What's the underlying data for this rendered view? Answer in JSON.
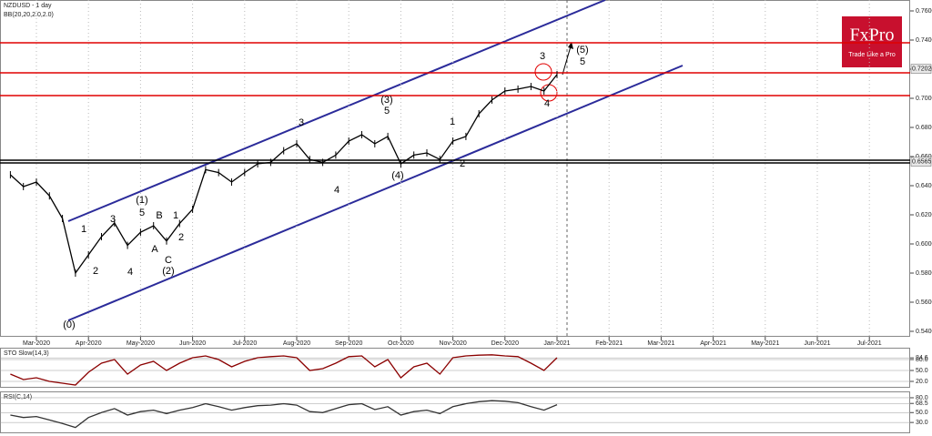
{
  "branding": {
    "name": "FxPro",
    "tagline": "Trade Like a Pro"
  },
  "chart_data": [
    {
      "type": "line",
      "title": "NZDUSD - 1 day",
      "subtitle": "BB(20,20,2.0,2.0)",
      "categories": [
        null,
        null,
        "Mar-2020",
        null,
        null,
        null,
        "Apr-2020",
        null,
        null,
        null,
        "May-2020",
        null,
        null,
        null,
        "Jun-2020",
        null,
        null,
        null,
        "Jul-2020",
        null,
        null,
        null,
        "Aug-2020",
        null,
        null,
        null,
        "Sep-2020",
        null,
        null,
        null,
        "Oct-2020",
        null,
        null,
        null,
        "Nov-2020",
        null,
        null,
        null,
        "Dec-2020",
        null,
        null,
        null,
        "Jan-2021",
        null,
        null,
        null,
        "Feb-2021",
        null,
        null,
        null,
        "Mar-2021",
        null,
        null,
        null,
        "Apr-2021",
        null,
        null,
        null,
        "May-2021",
        null,
        null,
        null,
        "Jun-2021",
        null,
        null,
        null,
        "Jul-2021",
        null
      ],
      "values": [
        0.6475,
        0.6394,
        0.6425,
        0.633,
        0.6175,
        0.58,
        0.5925,
        0.605,
        0.6144,
        0.599,
        0.608,
        0.6125,
        0.602,
        0.614,
        0.6238,
        0.651,
        0.649,
        0.6425,
        0.649,
        0.655,
        0.656,
        0.664,
        0.6688,
        0.658,
        0.656,
        0.661,
        0.6706,
        0.675,
        0.6688,
        0.6738,
        0.655,
        0.661,
        0.6625,
        0.658,
        0.6706,
        0.6738,
        0.6894,
        0.6988,
        0.705,
        0.7063,
        0.7081,
        0.705,
        0.7163,
        null,
        null,
        null,
        null,
        null,
        null,
        null,
        null,
        null,
        null,
        null,
        null,
        null,
        null,
        null,
        null,
        null,
        null,
        null,
        null,
        null,
        null,
        null,
        null,
        null
      ],
      "color": "#000000",
      "ylim": [
        0.53625,
        0.7675
      ],
      "yticks": [
        {
          "value": 0.54,
          "label": "0.54000"
        },
        {
          "value": 0.56,
          "label": "0.56000"
        },
        {
          "value": 0.58,
          "label": "0.58000"
        },
        {
          "value": 0.6,
          "label": "0.60000"
        },
        {
          "value": 0.62,
          "label": "0.62000"
        },
        {
          "value": 0.64,
          "label": "0.64000"
        },
        {
          "value": 0.66,
          "label": "0.66000"
        },
        {
          "value": 0.68,
          "label": "0.68000"
        },
        {
          "value": 0.7,
          "label": "0.70000"
        },
        {
          "value": 0.72,
          "label": "0.72000"
        },
        {
          "value": 0.74,
          "label": "0.74000"
        },
        {
          "value": 0.76,
          "label": "0.76000"
        }
      ],
      "hlines": [
        {
          "value": 0.7381,
          "color": "#e00000"
        },
        {
          "value": 0.7175,
          "color": "#e00000"
        },
        {
          "value": 0.7019,
          "color": "#e00000"
        },
        {
          "value": 0.6575,
          "color": "#000000"
        },
        {
          "value": 0.6556,
          "color": "#000000"
        }
      ],
      "price_tags": [
        {
          "value": 0.72022,
          "label": "0.72022"
        },
        {
          "value": 0.65651,
          "label": "0.65651"
        }
      ],
      "annotations": [
        "(0)",
        "1",
        "2",
        "3",
        "4",
        "5",
        "(1)",
        "A",
        "B",
        "C",
        "(2)",
        "1",
        "2",
        "3",
        "4",
        "(3)",
        "5",
        "(4)",
        "1",
        "2",
        "3",
        "4",
        "(5)",
        "5"
      ],
      "grid": true
    },
    {
      "type": "line",
      "title": "STO Slow(14,3)",
      "values": [
        40,
        25,
        30,
        20,
        15,
        10,
        45,
        70,
        80,
        40,
        65,
        75,
        50,
        70,
        85,
        90,
        80,
        60,
        75,
        85,
        88,
        90,
        85,
        50,
        55,
        70,
        88,
        90,
        60,
        80,
        30,
        60,
        70,
        40,
        85,
        90,
        92,
        93,
        90,
        88,
        70,
        50,
        85
      ],
      "color": "#8b0000",
      "ylim": [
        5,
        110
      ],
      "yticks": [
        {
          "value": 20,
          "label": "20.0"
        },
        {
          "value": 50,
          "label": "50.0"
        },
        {
          "value": 80,
          "label": "80.0"
        },
        84.6
      ]
    },
    {
      "type": "line",
      "title": "RSI(C,14)",
      "values": [
        45,
        40,
        42,
        35,
        28,
        20,
        40,
        50,
        58,
        45,
        52,
        55,
        48,
        55,
        60,
        68,
        62,
        55,
        60,
        64,
        65,
        68,
        65,
        52,
        50,
        58,
        66,
        68,
        56,
        62,
        45,
        52,
        55,
        48,
        62,
        68,
        72,
        74,
        73,
        70,
        62,
        55,
        66
      ],
      "color": "#333333",
      "ylim": [
        10,
        91
      ],
      "yticks": [
        {
          "value": 30,
          "label": "30.0"
        },
        {
          "value": 50,
          "label": "50.0"
        },
        68.5,
        {
          "value": 80,
          "label": "80.0"
        }
      ]
    }
  ]
}
